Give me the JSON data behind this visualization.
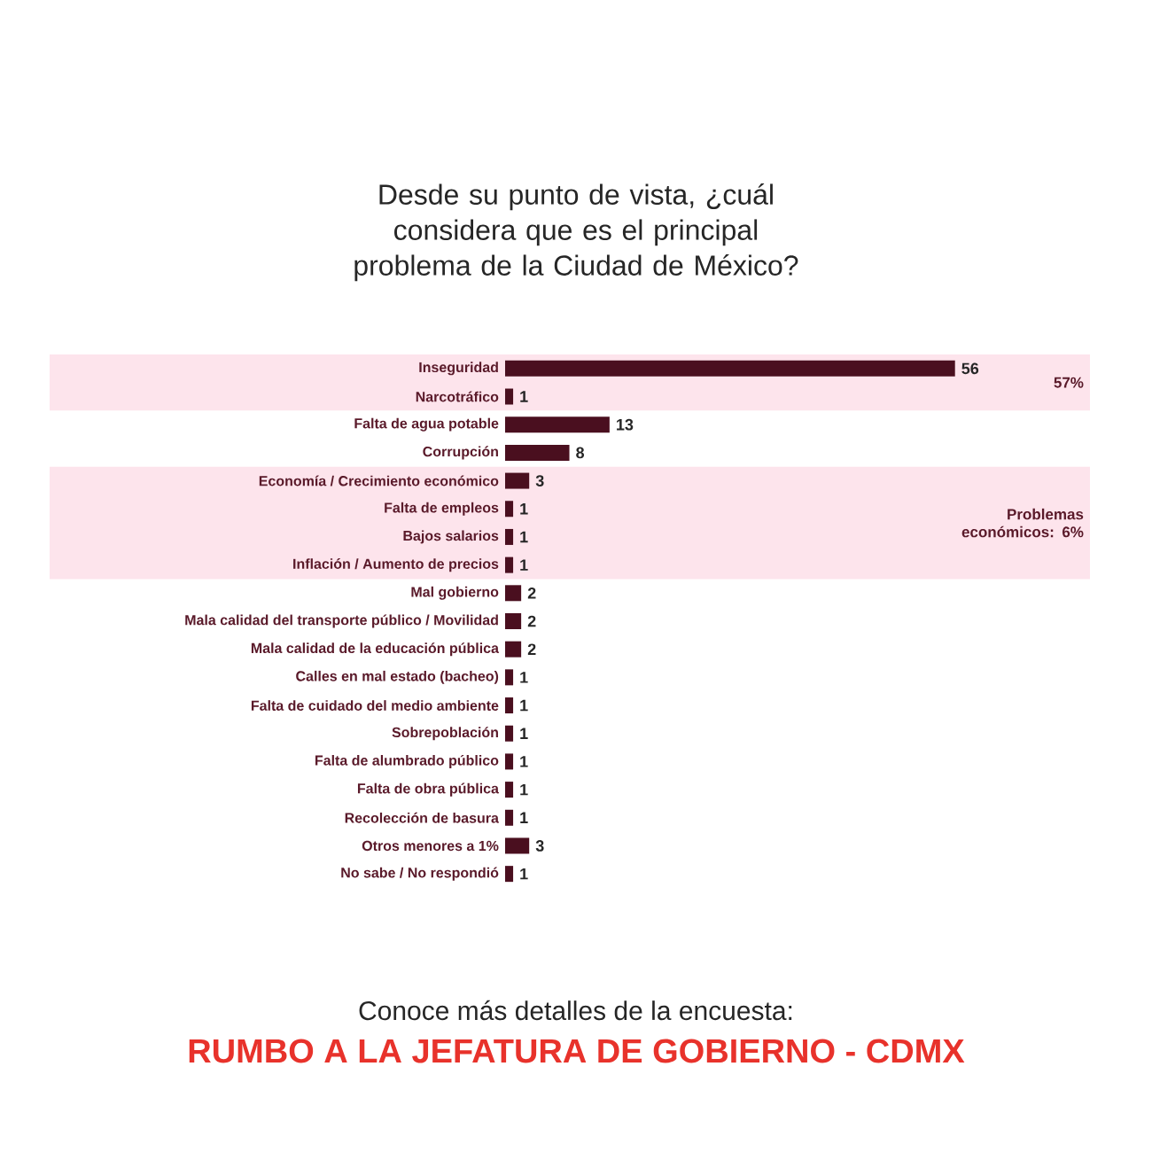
{
  "chart_data": {
    "type": "bar",
    "orientation": "horizontal",
    "title": "Desde su punto de vista, ¿cuál considera que es el principal problema de la Ciudad de México?",
    "categories": [
      "Inseguridad",
      "Narcotráfico",
      "Falta de agua potable",
      "Corrupción",
      "Economía / Crecimiento económico",
      "Falta de empleos",
      "Bajos salarios",
      "Inflación / Aumento de precios",
      "Mal gobierno",
      "Mala calidad del transporte público / Movilidad",
      "Mala calidad de la educación pública",
      "Calles en mal estado (bacheo)",
      "Falta de cuidado del medio ambiente",
      "Sobrepoblación",
      "Falta de alumbrado público",
      "Falta de obra pública",
      "Recolección de basura",
      "Otros menores a 1%",
      "No sabe / No respondió"
    ],
    "values": [
      56,
      1,
      13,
      8,
      3,
      1,
      1,
      1,
      2,
      2,
      2,
      1,
      1,
      1,
      1,
      1,
      1,
      3,
      1
    ],
    "color": "#4a0f1f",
    "data_labels": true,
    "bands": [
      {
        "axis": "y",
        "from": "Inseguridad",
        "to": "Narcotráfico",
        "label": "57%",
        "color": "#fde4ec"
      },
      {
        "axis": "y",
        "from": "Economía / Crecimiento económico",
        "to": "Inflación / Aumento de precios",
        "label": "Problemas económicos: 6%",
        "color": "#fde4ec"
      }
    ],
    "annotations": [
      "Conoce más detalles de la encuesta:",
      "RUMBO A LA JEFATURA DE GOBIERNO - CDMX"
    ]
  }
}
